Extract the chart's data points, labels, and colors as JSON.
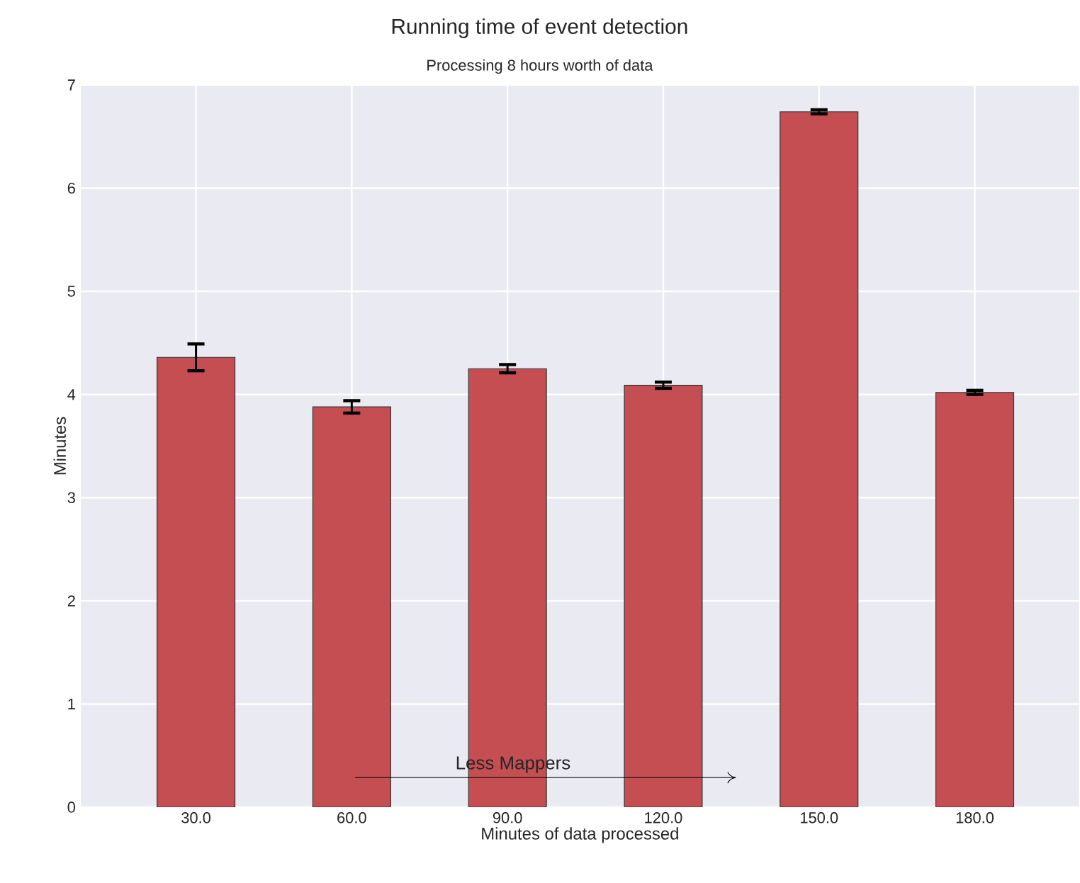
{
  "chart_data": {
    "type": "bar",
    "title": "Running time of event detection",
    "subtitle": "Processing 8 hours worth of data",
    "xlabel": "Minutes of data processed",
    "ylabel": "Minutes",
    "categories": [
      "30.0",
      "60.0",
      "90.0",
      "120.0",
      "150.0",
      "180.0"
    ],
    "values": [
      4.36,
      3.88,
      4.25,
      4.09,
      6.74,
      4.02
    ],
    "errors": [
      0.13,
      0.06,
      0.04,
      0.03,
      0.02,
      0.02
    ],
    "color": "#c44e52",
    "ylim": [
      0,
      7
    ],
    "yticks": [
      0,
      1,
      2,
      3,
      4,
      5,
      6,
      7
    ],
    "grid": true,
    "annotations": [
      "Less Mappers"
    ]
  }
}
